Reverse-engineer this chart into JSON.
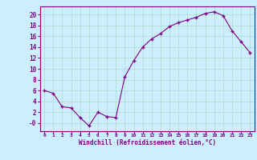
{
  "x": [
    0,
    1,
    2,
    3,
    4,
    5,
    6,
    7,
    8,
    9,
    10,
    11,
    12,
    13,
    14,
    15,
    16,
    17,
    18,
    19,
    20,
    21,
    22,
    23
  ],
  "y": [
    6.0,
    5.5,
    3.0,
    2.8,
    1.0,
    -0.5,
    2.0,
    1.2,
    1.0,
    8.5,
    11.5,
    14.0,
    15.5,
    16.5,
    17.8,
    18.5,
    19.0,
    19.5,
    20.2,
    20.5,
    19.8,
    17.0,
    15.0,
    13.0
  ],
  "line_color": "#800080",
  "marker": "+",
  "marker_color": "#800080",
  "bg_color": "#cceeff",
  "grid_color": "#aaddcc",
  "xlabel": "Windchill (Refroidissement éolien,°C)",
  "xlabel_color": "#800080",
  "tick_color": "#800080",
  "ylim": [
    -1.5,
    21.5
  ],
  "xlim": [
    -0.5,
    23.5
  ],
  "yticks": [
    0,
    2,
    4,
    6,
    8,
    10,
    12,
    14,
    16,
    18,
    20
  ],
  "ytick_labels": [
    "-0",
    "2",
    "4",
    "6",
    "8",
    "10",
    "12",
    "14",
    "16",
    "18",
    "20"
  ],
  "xticks": [
    0,
    1,
    2,
    3,
    4,
    5,
    6,
    7,
    8,
    9,
    10,
    11,
    12,
    13,
    14,
    15,
    16,
    17,
    18,
    19,
    20,
    21,
    22,
    23
  ]
}
